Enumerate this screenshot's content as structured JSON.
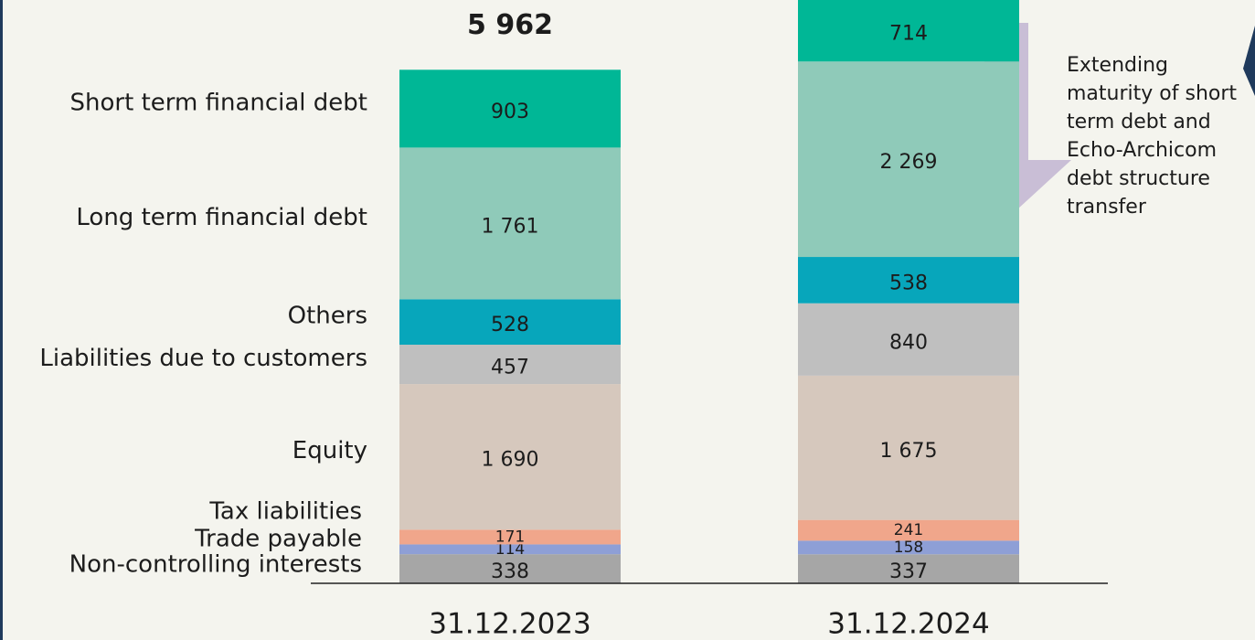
{
  "chart_data": {
    "type": "stacked_bar",
    "categories": [
      "31.12.2023",
      "31.12.2024"
    ],
    "ylim": [
      0,
      6772
    ],
    "total": {
      "value": 5962,
      "label": "5 962"
    },
    "annotation": [
      "Extending",
      "maturity of short",
      "term debt and",
      "Echo-Archicom",
      "debt structure",
      "transfer"
    ],
    "series": [
      {
        "name": "Non-controlling interests",
        "color": "#a6a6a6",
        "values": [
          338,
          337
        ],
        "value_labels": [
          "338",
          "337"
        ]
      },
      {
        "name": "Trade payable",
        "color": "#8e9fd6",
        "values": [
          114,
          158
        ],
        "value_labels": [
          "114",
          "158"
        ]
      },
      {
        "name": "Tax liabilities",
        "color": "#f0a68b",
        "values": [
          171,
          241
        ],
        "value_labels": [
          "171",
          "241"
        ]
      },
      {
        "name": "Equity",
        "color": "#d6c8bd",
        "values": [
          1690,
          1675
        ],
        "value_labels": [
          "1 690",
          "1 675"
        ]
      },
      {
        "name": "Liabilities due to customers",
        "color": "#bfbfbf",
        "values": [
          457,
          840
        ],
        "value_labels": [
          "457",
          "840"
        ]
      },
      {
        "name": "Others",
        "color": "#07a6bb",
        "values": [
          528,
          538
        ],
        "value_labels": [
          "528",
          "538"
        ]
      },
      {
        "name": "Long term financial debt",
        "color": "#8fcab9",
        "values": [
          1761,
          2269
        ],
        "value_labels": [
          "1 761",
          "2 269"
        ]
      },
      {
        "name": "Short term financial debt",
        "color": "#00b796",
        "values": [
          903,
          714
        ],
        "value_labels": [
          "903",
          "714"
        ]
      }
    ]
  }
}
